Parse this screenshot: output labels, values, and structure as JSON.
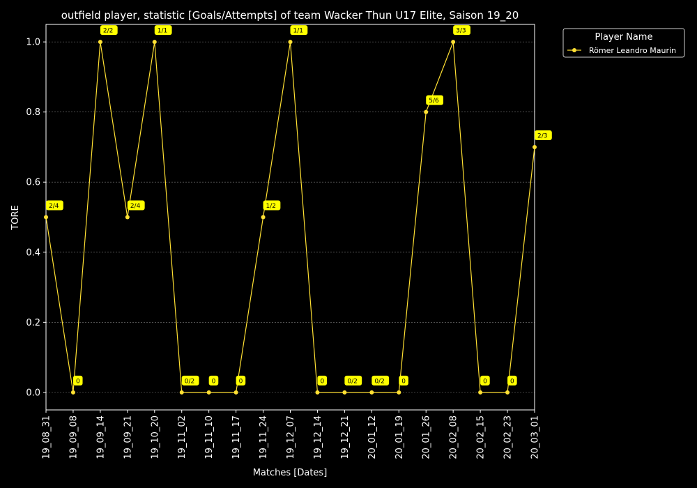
{
  "chart_data": {
    "type": "line",
    "title": "outfield player, statistic [Goals/Attempts] of team Wacker Thun U17 Elite, Saison 19_20",
    "xlabel": "Matches [Dates]",
    "ylabel": "TORE",
    "ylim": [
      -0.05,
      1.05
    ],
    "yticks": [
      "0.0",
      "0.2",
      "0.4",
      "0.6",
      "0.8",
      "1.0"
    ],
    "grid": true,
    "legend": {
      "title": "Player Name",
      "placement": "outside-top-right"
    },
    "categories": [
      "19_08_31",
      "19_09_08",
      "19_09_14",
      "19_09_21",
      "19_10_20",
      "19_11_02",
      "19_11_10",
      "19_11_17",
      "19_11_24",
      "19_12_07",
      "19_12_14",
      "19_12_21",
      "20_01_12",
      "20_01_19",
      "20_01_26",
      "20_02_08",
      "20_02_15",
      "20_02_23",
      "20_03_01"
    ],
    "series": [
      {
        "name": "Römer Leandro Maurin",
        "color": "#ffe033",
        "values": [
          0.5,
          0.0,
          1.0,
          0.5,
          1.0,
          0.0,
          0.0,
          0.0,
          0.5,
          1.0,
          0.0,
          0.0,
          0.0,
          0.0,
          0.8,
          1.0,
          0.0,
          0.0,
          0.7
        ],
        "labels": [
          "2/4",
          "0",
          "2/2",
          "2/4",
          "1/1",
          "0/2",
          "0",
          "0",
          "1/2",
          "1/1",
          "0",
          "0/2",
          "0/2",
          "0",
          "5/6",
          "3/3",
          "0",
          "0",
          "2/3"
        ]
      }
    ]
  },
  "colors": {
    "background": "#000000",
    "foreground": "#ffffff",
    "grid": "#808080",
    "annotation_box": "#ffff00"
  }
}
